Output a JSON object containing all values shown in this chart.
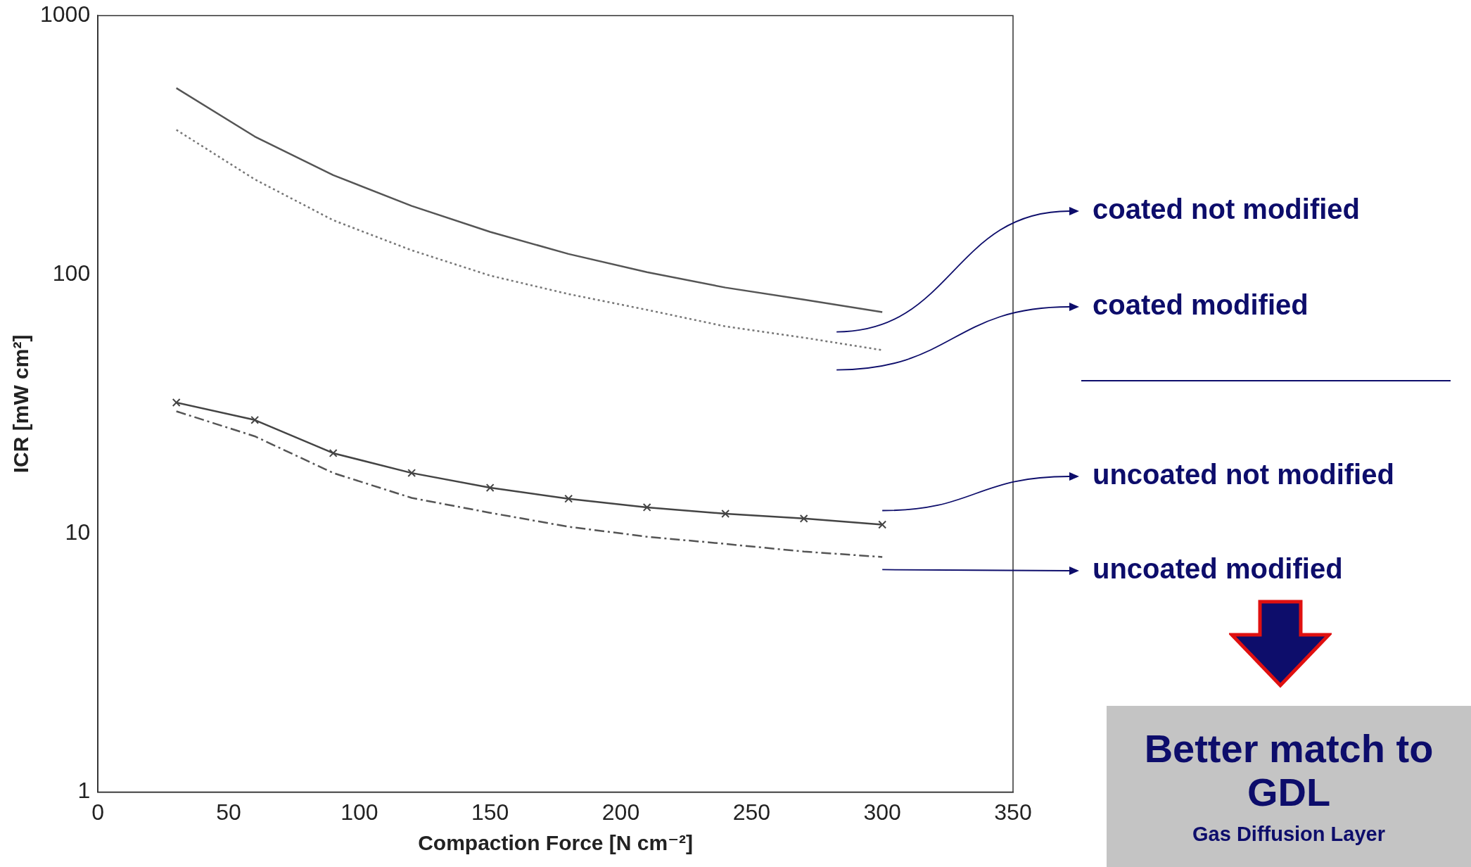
{
  "chart_data": {
    "type": "line",
    "xlabel": "Compaction Force [N cm⁻²]",
    "ylabel": "ICR [mW cm²]",
    "log": "y",
    "xlim": [
      0,
      350
    ],
    "xticks": [
      0,
      50,
      100,
      150,
      200,
      250,
      300,
      350
    ],
    "ylim": [
      1,
      1000
    ],
    "yticks": [
      1,
      10,
      100,
      1000
    ],
    "grid": false,
    "legend": false,
    "x": [
      30,
      60,
      90,
      120,
      150,
      180,
      210,
      240,
      270,
      300
    ],
    "series": [
      {
        "name": "coated not modified",
        "color": "#555555",
        "line_style": "solid",
        "marker": "none",
        "values": [
          525,
          341,
          242,
          184,
          146,
          120,
          102,
          89,
          80,
          71.5
        ]
      },
      {
        "name": "coated modified",
        "color": "#777777",
        "line_style": "dotted",
        "marker": "none",
        "values": [
          362,
          233,
          162,
          124,
          99,
          84,
          73,
          63,
          57,
          51
        ]
      },
      {
        "name": "uncoated not modified",
        "color": "#444444",
        "line_style": "solid",
        "marker": "cross",
        "values": [
          32,
          27.4,
          20.4,
          17.1,
          15,
          13.6,
          12.6,
          11.9,
          11.4,
          10.8
        ]
      },
      {
        "name": "uncoated modified",
        "color": "#555555",
        "line_style": "dashed",
        "marker": "none",
        "values": [
          29.6,
          23.7,
          17.1,
          13.7,
          12,
          10.6,
          9.7,
          9.1,
          8.5,
          8.1
        ]
      }
    ],
    "annotations": [
      "Better match to GDL",
      "Gas Diffusion Layer"
    ]
  }
}
